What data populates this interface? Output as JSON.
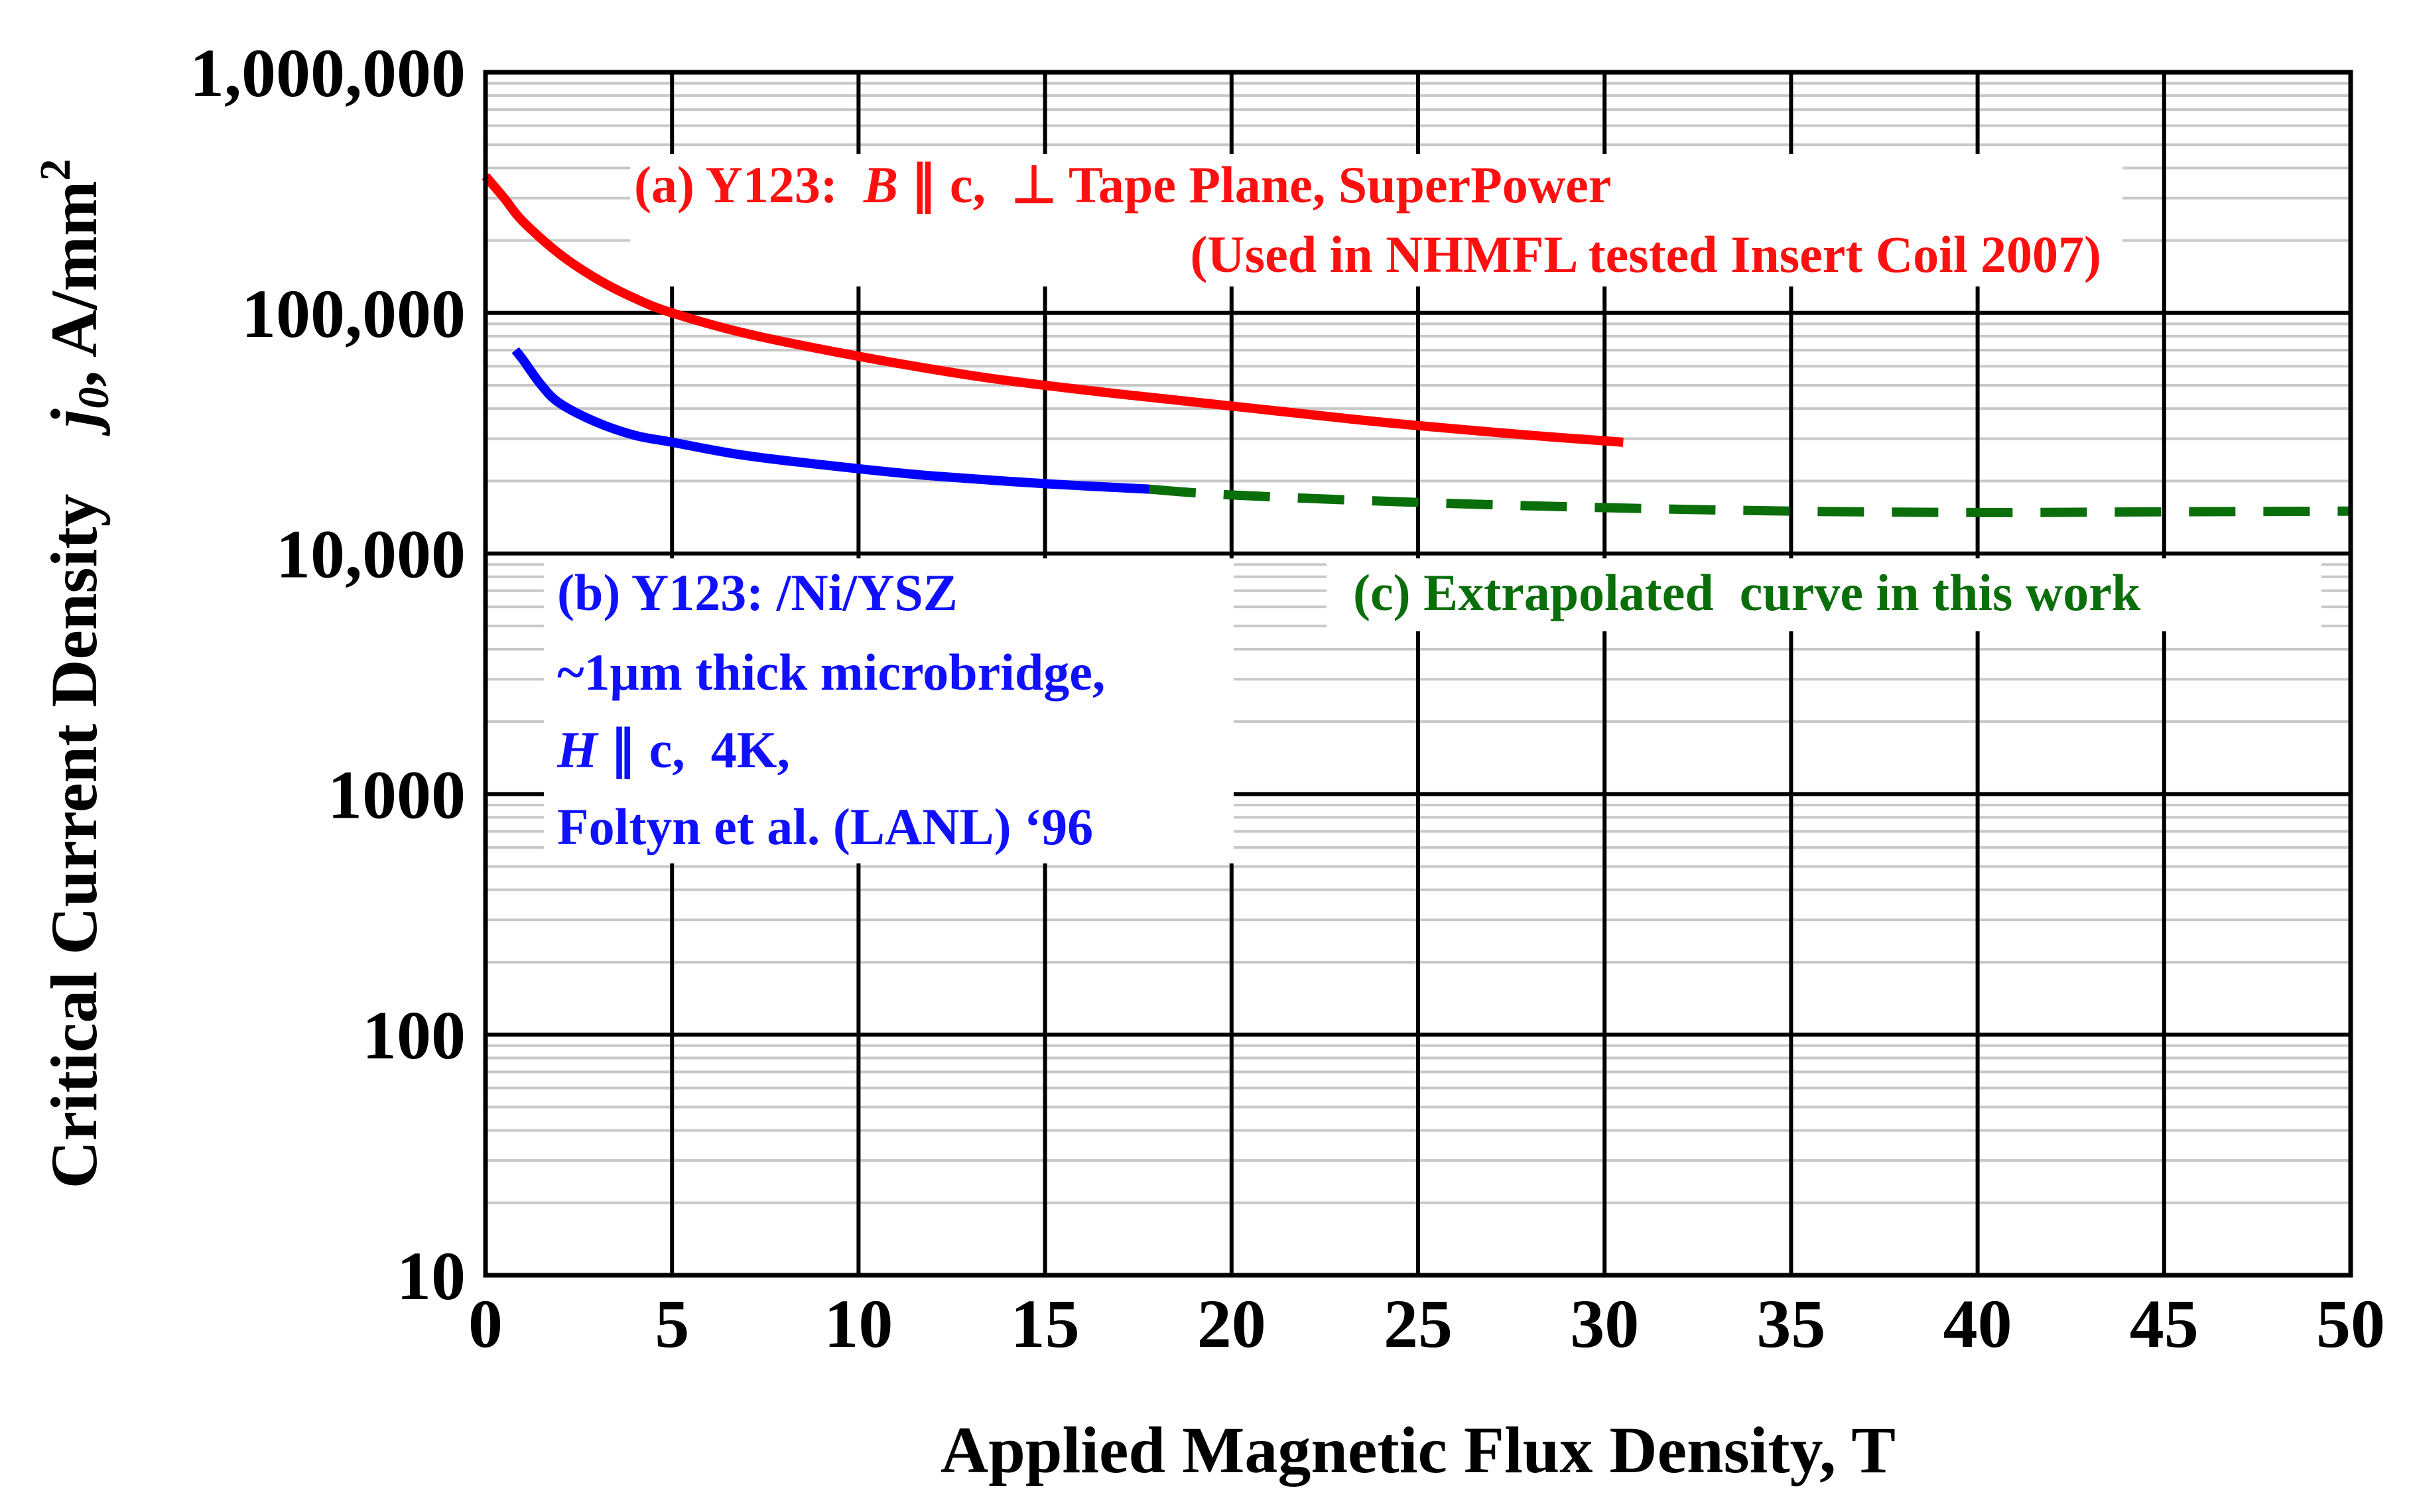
{
  "chart_data": {
    "type": "line",
    "yscale": "log",
    "xlabel": "Applied Magnetic Flux Density,  T",
    "ylabel_main": "Critical Current Density",
    "ylabel_symbol": "j",
    "ylabel_subscript": "0",
    "ylabel_units": ",  A/mm",
    "ylabel_units_sup": "2",
    "xlim": [
      0,
      50
    ],
    "ylim": [
      10,
      1000000
    ],
    "x_ticks": [
      0,
      5,
      10,
      15,
      20,
      25,
      30,
      35,
      40,
      45,
      50
    ],
    "x_tick_labels": [
      "0",
      "5",
      "10",
      "15",
      "20",
      "25",
      "30",
      "35",
      "40",
      "45",
      "50"
    ],
    "y_ticks": [
      10,
      100,
      1000,
      10000,
      100000,
      1000000
    ],
    "y_tick_labels": [
      "10",
      "100",
      "1000",
      "10,000",
      "100,000",
      "1,000,000"
    ],
    "grid": true,
    "series": [
      {
        "name": "(a) Y123: B ∥ c, ⊥ Tape Plane, SuperPower",
        "color": "#ff0000",
        "style": "solid",
        "x": [
          0,
          0.5,
          1,
          2,
          3,
          4,
          5,
          7,
          10,
          13,
          15,
          17,
          20,
          23,
          25,
          28,
          30.5
        ],
        "y": [
          370000,
          300000,
          240000,
          175000,
          138000,
          115000,
          100000,
          82000,
          66000,
          55000,
          50000,
          46000,
          41000,
          36500,
          34000,
          31000,
          29000
        ]
      },
      {
        "name": "(b) Y123: /Ni/YSZ",
        "color": "#0000ff",
        "style": "solid",
        "x": [
          0.8,
          1,
          1.5,
          2,
          3,
          4,
          5,
          7,
          10,
          12,
          15,
          17.8
        ],
        "y": [
          70000,
          64000,
          50000,
          42000,
          35000,
          31000,
          29000,
          25500,
          22500,
          21000,
          19500,
          18500
        ]
      },
      {
        "name": "(c) Extrapolated curve in this work",
        "color": "#0a6e0a",
        "style": "dashed",
        "x": [
          17.8,
          20,
          25,
          30,
          35,
          40,
          45,
          50
        ],
        "y": [
          18500,
          17500,
          16300,
          15500,
          15000,
          14800,
          14900,
          15000
        ]
      }
    ],
    "annotations": {
      "a_line1_prefix": "(a) Y123:  ",
      "a_line1_B": "B",
      "a_line1_rest": " ∥ c,  ⊥ Tape Plane, SuperPower",
      "a_line2": "(Used in NHMFL tested Insert  Coil 2007)",
      "b_line1": "(b) Y123:  /Ni/YSZ",
      "b_line2": "~1μm thick microbridge,",
      "b_line3_H": "H",
      "b_line3_rest": " ∥ c,  4K,",
      "b_line4": "Foltyn et al. (LANL) ‘96",
      "c_line1": "(c) Extrapolated  curve in this work"
    },
    "colors": {
      "red": "#ff1010",
      "blue": "#1010ff",
      "green": "#0a6e0a",
      "minor_grid": "#c8c8c8"
    }
  }
}
